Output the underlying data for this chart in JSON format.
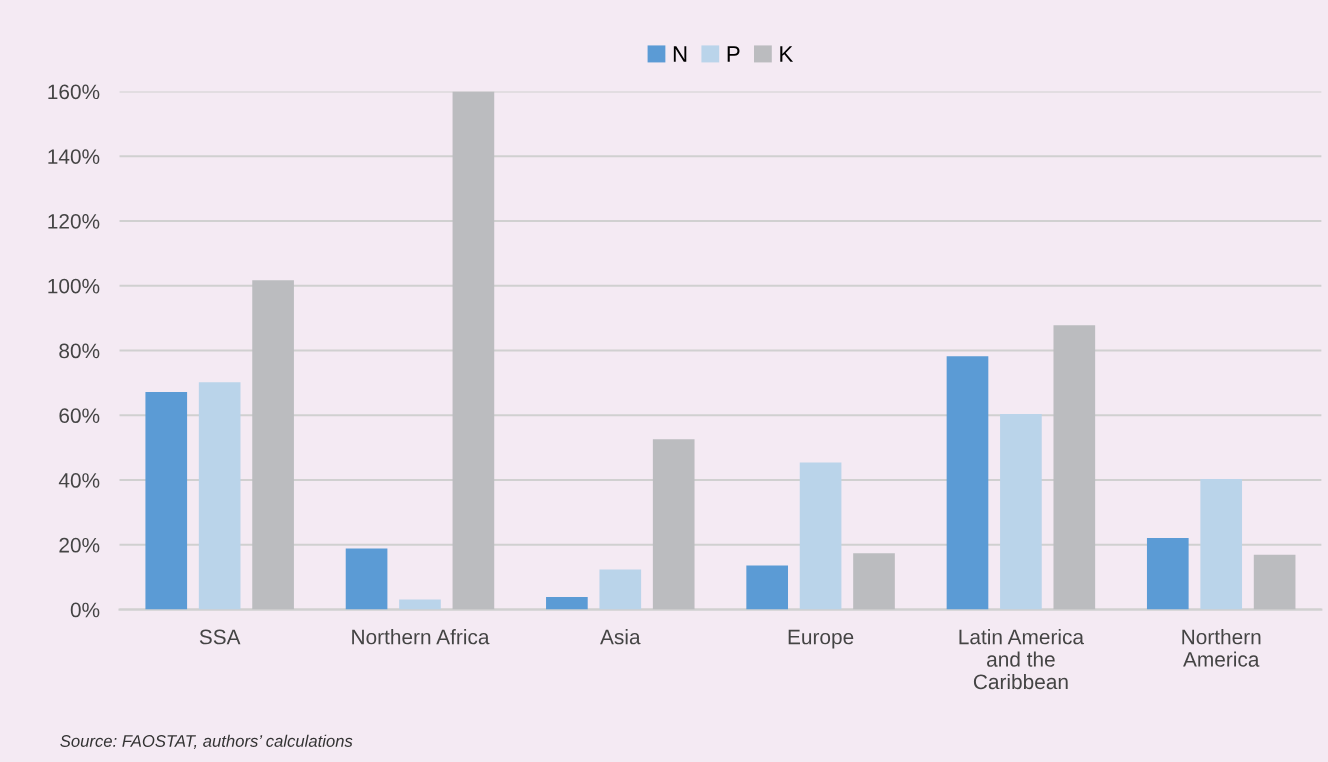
{
  "chart_data": {
    "type": "bar",
    "categories": [
      "SSA",
      "Northern Africa",
      "Asia",
      "Europe",
      "Latin America\nand the\nCaribbean",
      "Northern\nAmerica"
    ],
    "series": [
      {
        "name": "N",
        "color": "#5b9bd5",
        "values": [
          67.2,
          18.9,
          3.9,
          13.6,
          78.2,
          22.1
        ]
      },
      {
        "name": "P",
        "color": "#bad4ea",
        "values": [
          70.2,
          3.1,
          12.4,
          45.4,
          60.4,
          40.3
        ]
      },
      {
        "name": "K",
        "color": "#bbbcbf",
        "values": [
          101.7,
          160,
          52.6,
          17.4,
          87.8,
          16.9
        ]
      }
    ],
    "ylim": [
      0,
      160
    ],
    "yticks": [
      {
        "value": 0,
        "label": "0%"
      },
      {
        "value": 20,
        "label": "20%"
      },
      {
        "value": 40,
        "label": "40%"
      },
      {
        "value": 60,
        "label": "60%"
      },
      {
        "value": 80,
        "label": "80%"
      },
      {
        "value": 100,
        "label": "100%"
      },
      {
        "value": 120,
        "label": "120%"
      },
      {
        "value": 140,
        "label": "140%"
      },
      {
        "value": 160,
        "label": "160%"
      }
    ],
    "grid": "y",
    "legend": "top",
    "annotations": [
      "Source: FAOSTAT, authors’ calculations"
    ]
  }
}
